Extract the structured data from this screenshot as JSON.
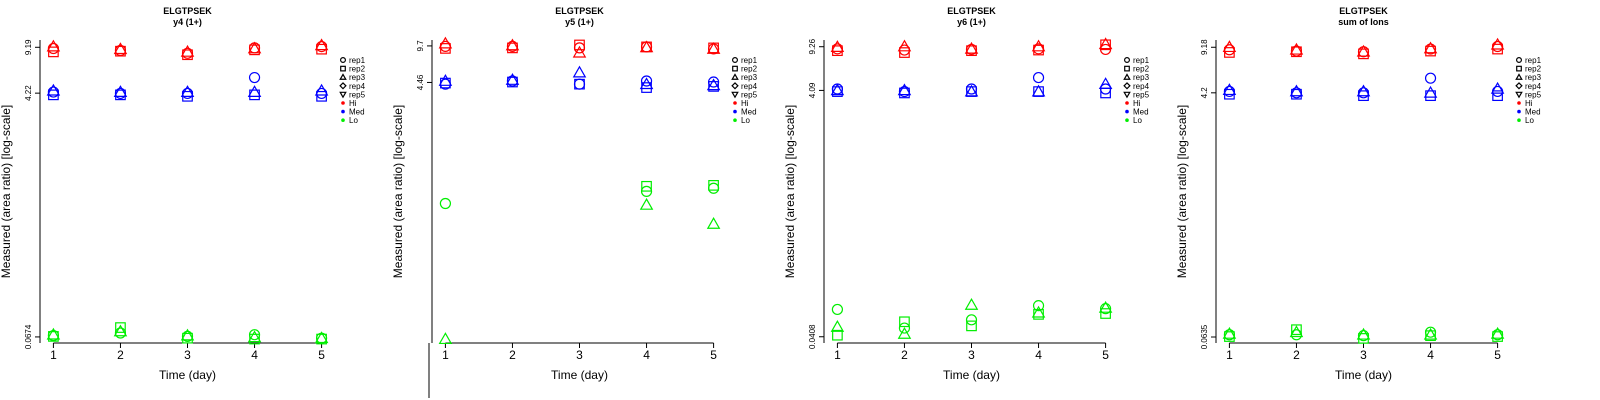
{
  "figure": {
    "x_ticks": [
      "1",
      "2",
      "3",
      "4",
      "5"
    ],
    "legend": {
      "shapes": [
        {
          "label": "rep1",
          "shape": "circle"
        },
        {
          "label": "rep2",
          "shape": "square"
        },
        {
          "label": "rep3",
          "shape": "triangle-up"
        },
        {
          "label": "rep4",
          "shape": "diamond"
        },
        {
          "label": "rep5",
          "shape": "triangle-down"
        }
      ],
      "groups": [
        {
          "label": "Hi",
          "color": "#ff0000"
        },
        {
          "label": "Med",
          "color": "#0000ff"
        },
        {
          "label": "Lo",
          "color": "#00ee00"
        }
      ]
    }
  },
  "chart_data": [
    {
      "type": "scatter",
      "title": "ELGTPSEK",
      "subtitle": "y4 (1+)",
      "xlabel": "Time (day)",
      "ylabel": "Measured (area ratio) [log-scale]",
      "y_scale": "log",
      "x": [
        1,
        2,
        3,
        4,
        5
      ],
      "y_tick_labels": [
        "0.0674",
        "4.22",
        "9.19"
      ],
      "y_ticks": [
        0.0674,
        4.22,
        9.19
      ],
      "ylim": [
        0.0608,
        10.4
      ],
      "xlim": [
        0.8,
        5.2
      ],
      "grid": false,
      "legend_position": "right",
      "series": [
        {
          "group": "Hi",
          "rep": "rep1",
          "values": [
            9.0,
            8.7,
            8.3,
            9.1,
            9.3
          ]
        },
        {
          "group": "Hi",
          "rep": "rep2",
          "values": [
            8.5,
            8.6,
            8.1,
            8.8,
            8.9
          ]
        },
        {
          "group": "Hi",
          "rep": "rep3",
          "values": [
            9.3,
            8.9,
            8.5,
            9.0,
            9.5
          ]
        },
        {
          "group": "Med",
          "rep": "rep1",
          "values": [
            4.3,
            4.2,
            4.2,
            5.5,
            4.2
          ]
        },
        {
          "group": "Med",
          "rep": "rep2",
          "values": [
            4.1,
            4.1,
            4.0,
            4.1,
            4.0
          ]
        },
        {
          "group": "Med",
          "rep": "rep3",
          "values": [
            4.4,
            4.3,
            4.3,
            4.3,
            4.4
          ]
        },
        {
          "group": "Lo",
          "rep": "rep1",
          "values": [
            0.069,
            0.072,
            0.068,
            0.07,
            0.066
          ]
        },
        {
          "group": "Lo",
          "rep": "rep2",
          "values": [
            0.068,
            0.079,
            0.066,
            0.065,
            0.065
          ]
        },
        {
          "group": "Lo",
          "rep": "rep3",
          "values": [
            0.07,
            0.074,
            0.069,
            0.067,
            0.066
          ]
        }
      ]
    },
    {
      "type": "scatter",
      "title": "ELGTPSEK",
      "subtitle": "y5 (1+)",
      "xlabel": "Time (day)",
      "ylabel": "Measured (area ratio) [log-scale]",
      "y_scale": "log",
      "x": [
        1,
        2,
        3,
        4,
        5
      ],
      "y_tick_labels": [
        "4.46",
        "9.7"
      ],
      "y_ticks": [
        4.46,
        9.7
      ],
      "ylim": [
        0.0175,
        11.0
      ],
      "xlim": [
        0.8,
        5.2
      ],
      "grid": false,
      "legend_position": "right",
      "series": [
        {
          "group": "Hi",
          "rep": "rep1",
          "values": [
            9.6,
            9.6,
            9.3,
            9.5,
            9.1
          ]
        },
        {
          "group": "Hi",
          "rep": "rep2",
          "values": [
            9.2,
            9.3,
            9.9,
            9.5,
            9.3
          ]
        },
        {
          "group": "Hi",
          "rep": "rep3",
          "values": [
            10.2,
            9.8,
            8.4,
            9.4,
            9.1
          ]
        },
        {
          "group": "Med",
          "rep": "rep1",
          "values": [
            4.3,
            4.6,
            4.3,
            4.6,
            4.5
          ]
        },
        {
          "group": "Med",
          "rep": "rep2",
          "values": [
            4.4,
            4.5,
            4.3,
            4.0,
            4.1
          ]
        },
        {
          "group": "Med",
          "rep": "rep3",
          "values": [
            4.6,
            4.7,
            5.5,
            4.3,
            4.2
          ]
        },
        {
          "group": "Lo",
          "rep": "rep1",
          "values": [
            0.34,
            null,
            null,
            0.44,
            0.47
          ]
        },
        {
          "group": "Lo",
          "rep": "rep2",
          "values": [
            null,
            null,
            null,
            0.49,
            0.5
          ]
        },
        {
          "group": "Lo",
          "rep": "rep3",
          "values": [
            0.019,
            null,
            null,
            0.33,
            0.22
          ]
        }
      ]
    },
    {
      "type": "scatter",
      "title": "ELGTPSEK",
      "subtitle": "y6 (1+)",
      "xlabel": "Time (day)",
      "ylabel": "Measured (area ratio) [log-scale]",
      "y_scale": "log",
      "x": [
        1,
        2,
        3,
        4,
        5
      ],
      "y_tick_labels": [
        "0.0408",
        "4.09",
        "9.26"
      ],
      "y_ticks": [
        0.0408,
        4.09,
        9.26
      ],
      "ylim": [
        0.0363,
        10.5
      ],
      "xlim": [
        0.8,
        5.2
      ],
      "grid": false,
      "legend_position": "right",
      "series": [
        {
          "group": "Hi",
          "rep": "rep1",
          "values": [
            8.9,
            8.7,
            8.8,
            8.9,
            8.8
          ]
        },
        {
          "group": "Hi",
          "rep": "rep2",
          "values": [
            8.6,
            8.3,
            8.6,
            8.7,
            9.6
          ]
        },
        {
          "group": "Hi",
          "rep": "rep3",
          "values": [
            9.2,
            9.3,
            8.9,
            9.3,
            9.7
          ]
        },
        {
          "group": "Med",
          "rep": "rep1",
          "values": [
            4.2,
            4.0,
            4.2,
            5.2,
            4.2
          ]
        },
        {
          "group": "Med",
          "rep": "rep2",
          "values": [
            4.0,
            3.9,
            4.0,
            4.0,
            3.9
          ]
        },
        {
          "group": "Med",
          "rep": "rep3",
          "values": [
            4.1,
            4.1,
            4.0,
            4.0,
            4.6
          ]
        },
        {
          "group": "Lo",
          "rep": "rep1",
          "values": [
            0.068,
            0.048,
            0.056,
            0.073,
            0.069
          ]
        },
        {
          "group": "Lo",
          "rep": "rep2",
          "values": [
            0.042,
            0.054,
            0.05,
            0.062,
            0.063
          ]
        },
        {
          "group": "Lo",
          "rep": "rep3",
          "values": [
            0.049,
            0.043,
            0.074,
            0.064,
            0.07
          ]
        }
      ]
    },
    {
      "type": "scatter",
      "title": "ELGTPSEK",
      "subtitle": "sum of Ions",
      "xlabel": "Time (day)",
      "ylabel": "Measured (area ratio) [log-scale]",
      "y_scale": "log",
      "x": [
        1,
        2,
        3,
        4,
        5
      ],
      "y_tick_labels": [
        "0.0635",
        "4.2",
        "9.18"
      ],
      "y_ticks": [
        0.0635,
        4.2,
        9.18
      ],
      "ylim": [
        0.0573,
        10.4
      ],
      "xlim": [
        0.8,
        5.2
      ],
      "grid": false,
      "legend_position": "right",
      "series": [
        {
          "group": "Hi",
          "rep": "rep1",
          "values": [
            8.8,
            8.6,
            8.5,
            8.9,
            9.3
          ]
        },
        {
          "group": "Hi",
          "rep": "rep2",
          "values": [
            8.4,
            8.5,
            8.2,
            8.6,
            8.9
          ]
        },
        {
          "group": "Hi",
          "rep": "rep3",
          "values": [
            9.2,
            8.8,
            8.5,
            9.0,
            9.6
          ]
        },
        {
          "group": "Med",
          "rep": "rep1",
          "values": [
            4.3,
            4.2,
            4.2,
            5.4,
            4.3
          ]
        },
        {
          "group": "Med",
          "rep": "rep2",
          "values": [
            4.1,
            4.1,
            4.0,
            4.0,
            4.0
          ]
        },
        {
          "group": "Med",
          "rep": "rep3",
          "values": [
            4.4,
            4.3,
            4.3,
            4.2,
            4.5
          ]
        },
        {
          "group": "Lo",
          "rep": "rep1",
          "values": [
            0.066,
            0.066,
            0.065,
            0.069,
            0.066
          ]
        },
        {
          "group": "Lo",
          "rep": "rep2",
          "values": [
            0.064,
            0.072,
            0.062,
            0.065,
            0.064
          ]
        },
        {
          "group": "Lo",
          "rep": "rep3",
          "values": [
            0.067,
            0.069,
            0.066,
            0.066,
            0.067
          ]
        }
      ]
    }
  ]
}
